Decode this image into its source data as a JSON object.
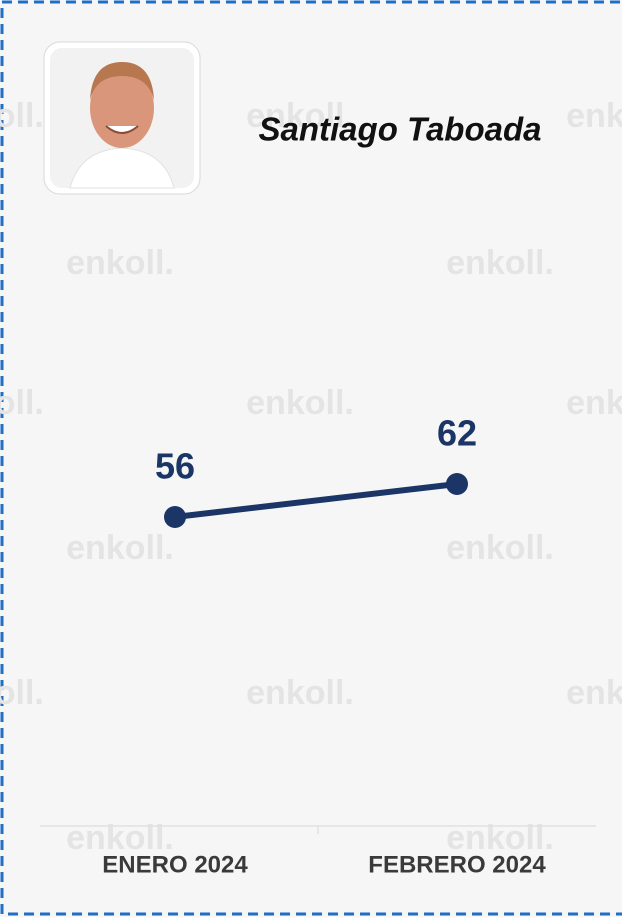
{
  "chart_data": {
    "type": "line",
    "title": "Santiago Taboada",
    "watermark": "enkoll.",
    "categories": [
      "ENERO 2024",
      "FEBRERO 2024"
    ],
    "values": [
      56,
      62
    ],
    "color": "#1b3567",
    "ylim": [
      0,
      100
    ]
  }
}
